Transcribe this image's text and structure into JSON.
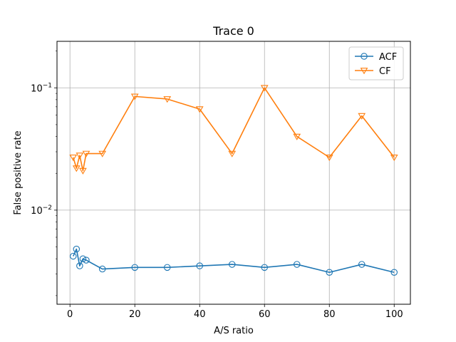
{
  "chart_data": {
    "type": "line",
    "title": "Trace 0",
    "xlabel": "A/S ratio",
    "ylabel": "False positive rate",
    "yscale": "log",
    "grid": true,
    "legend_placement": "top-right",
    "xlim": [
      -4,
      105
    ],
    "ylim": [
      0.0017,
      0.24
    ],
    "x_ticks": [
      0,
      20,
      40,
      60,
      80,
      100
    ],
    "x_tick_labels": [
      "0",
      "20",
      "40",
      "60",
      "80",
      "100"
    ],
    "y_ticks": [
      0.01,
      0.1
    ],
    "y_tick_labels": [
      "10^-2",
      "10^-1"
    ],
    "x": [
      1,
      2,
      3,
      4,
      5,
      10,
      20,
      30,
      40,
      50,
      60,
      70,
      80,
      90,
      100
    ],
    "series": [
      {
        "name": "ACF",
        "color": "#1f77b4",
        "marker": "circle",
        "values": [
          0.0042,
          0.0048,
          0.0035,
          0.004,
          0.0039,
          0.0033,
          0.0034,
          0.0034,
          0.0035,
          0.0036,
          0.0034,
          0.0036,
          0.0031,
          0.0036,
          0.0031
        ]
      },
      {
        "name": "CF",
        "color": "#ff7f0e",
        "marker": "triangle-down",
        "values": [
          0.027,
          0.022,
          0.028,
          0.021,
          0.029,
          0.029,
          0.085,
          0.081,
          0.067,
          0.029,
          0.1,
          0.04,
          0.027,
          0.059,
          0.027
        ]
      }
    ]
  }
}
